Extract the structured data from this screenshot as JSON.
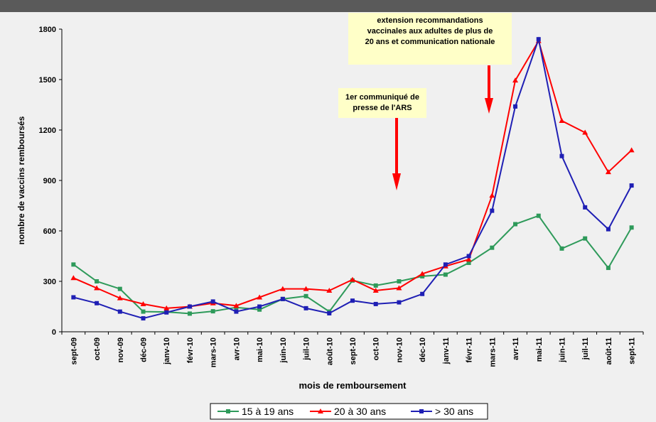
{
  "chart_data": {
    "type": "line",
    "x_label": "mois de remboursement",
    "y_label": "nombre de vaccins remboursés",
    "categories": [
      "sept-09",
      "oct-09",
      "nov-09",
      "déc-09",
      "janv-10",
      "févr-10",
      "mars-10",
      "avr-10",
      "mai-10",
      "juin-10",
      "juil-10",
      "août-10",
      "sept-10",
      "oct-10",
      "nov-10",
      "déc-10",
      "janv-11",
      "févr-11",
      "mars-11",
      "avr-11",
      "mai-11",
      "juin-11",
      "juil-11",
      "août-11",
      "sept-11"
    ],
    "series": [
      {
        "name": "15 à 19 ans",
        "color": "#2e9a5a",
        "marker": "square",
        "values": [
          400,
          300,
          255,
          120,
          118,
          108,
          122,
          145,
          132,
          195,
          212,
          120,
          305,
          275,
          300,
          330,
          340,
          410,
          500,
          640,
          690,
          495,
          555,
          380,
          620
        ]
      },
      {
        "name": "20 à 30 ans",
        "color": "#ff0000",
        "marker": "triangle",
        "values": [
          320,
          260,
          200,
          165,
          140,
          150,
          170,
          155,
          205,
          255,
          255,
          245,
          310,
          245,
          260,
          345,
          390,
          430,
          810,
          1495,
          1730,
          1255,
          1185,
          950,
          1080
        ]
      },
      {
        "name": "> 30 ans",
        "color": "#1f1fb4",
        "marker": "square",
        "values": [
          205,
          170,
          120,
          80,
          115,
          150,
          180,
          120,
          150,
          195,
          140,
          110,
          185,
          165,
          175,
          225,
          400,
          450,
          720,
          1340,
          1740,
          1045,
          740,
          610,
          870
        ]
      }
    ],
    "ylim": [
      0,
      1800
    ],
    "yticks": [
      0,
      300,
      600,
      900,
      1200,
      1500,
      1800
    ],
    "annotations": [
      {
        "lines": [
          "extension recommandations",
          "vaccinales aux adultes de plus de",
          "20 ans et communication nationale"
        ]
      },
      {
        "lines": [
          "1er communiqué de",
          "presse de l'ARS"
        ]
      }
    ]
  }
}
